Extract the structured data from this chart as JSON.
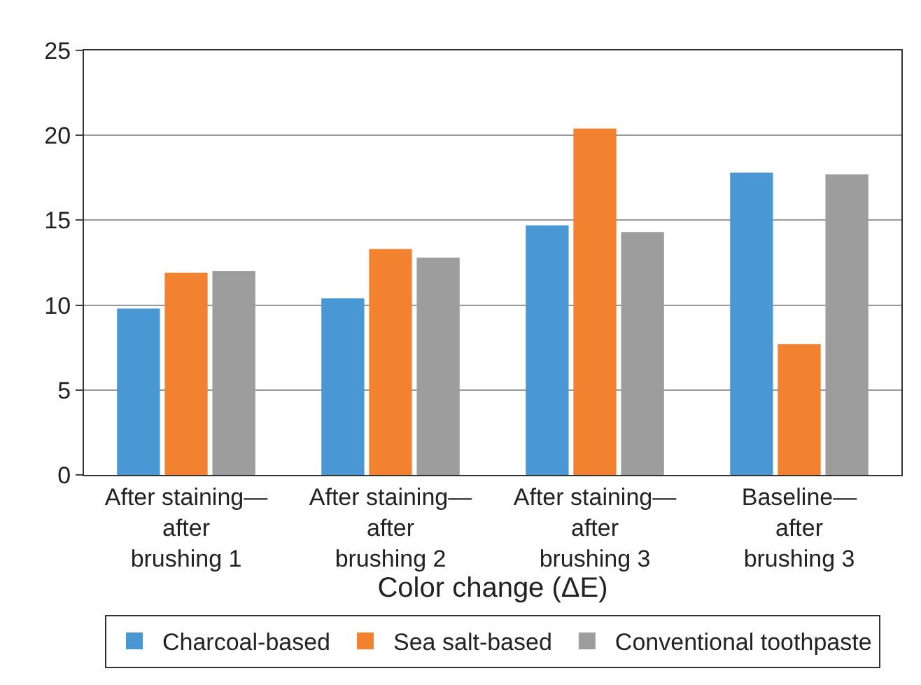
{
  "chart_data": {
    "type": "bar",
    "xlabel": "Color change (ΔE)",
    "categories": [
      "After staining—\nafter\nbrushing 1",
      "After staining—\nafter\nbrushing 2",
      "After staining—\nafter\nbrushing 3",
      "Baseline—\nafter\nbrushing 3"
    ],
    "series": [
      {
        "name": "Charcoal-based",
        "color": "#4a98d3",
        "values": [
          9.8,
          10.4,
          14.7,
          17.8
        ]
      },
      {
        "name": "Sea salt-based",
        "color": "#f28130",
        "values": [
          11.9,
          13.3,
          20.4,
          7.7
        ]
      },
      {
        "name": "Conventional toothpaste",
        "color": "#9d9d9d",
        "values": [
          12.0,
          12.8,
          14.3,
          17.7
        ]
      }
    ],
    "ylim": [
      0,
      25
    ],
    "yticks": [
      0,
      5,
      10,
      15,
      20,
      25
    ],
    "grid": "y",
    "legend": "bottom"
  }
}
